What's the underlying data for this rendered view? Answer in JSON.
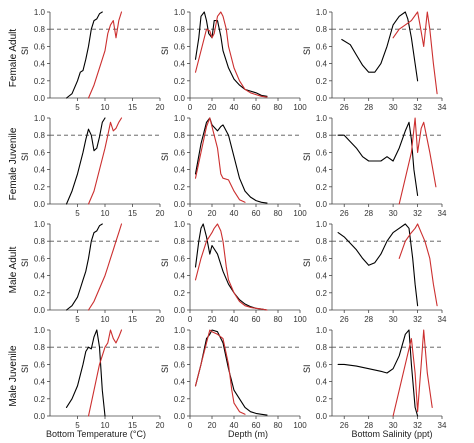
{
  "figure": {
    "row_labels": [
      "Female Adult",
      "Female Juvenile",
      "Male Adult",
      "Male Juvenile"
    ],
    "y_label": "SI",
    "x_labels": [
      "Bottom Temperature (°C)",
      "Depth (m)",
      "Bottom Salinity (ppt)"
    ]
  },
  "colors": {
    "black_series": "#000000",
    "red_series": "#cc2f2f",
    "reference_line": "#555555",
    "axes": "#444444"
  },
  "chart_data": [
    {
      "type": "line",
      "row": "Female Adult",
      "column": "Bottom Temperature",
      "xlim": [
        0,
        20
      ],
      "ylim": [
        0,
        1
      ],
      "xticks": [
        5,
        10,
        15,
        20
      ],
      "yticks": [
        0.0,
        0.2,
        0.4,
        0.6,
        0.8,
        1.0
      ],
      "reference_line": 0.8,
      "grid": false,
      "series": [
        {
          "color": "black",
          "x": [
            3,
            4,
            5,
            5.5,
            6,
            6.5,
            7,
            7.5,
            8,
            8.5,
            9,
            9.5
          ],
          "y": [
            0.0,
            0.05,
            0.2,
            0.3,
            0.32,
            0.45,
            0.6,
            0.8,
            0.9,
            0.92,
            0.98,
            1.0
          ]
        },
        {
          "color": "red",
          "x": [
            7,
            8,
            9,
            10,
            10.5,
            11,
            11.5,
            12,
            12.5,
            13
          ],
          "y": [
            0.0,
            0.15,
            0.35,
            0.55,
            0.75,
            0.85,
            0.9,
            0.7,
            0.9,
            1.0
          ]
        }
      ]
    },
    {
      "type": "line",
      "row": "Female Adult",
      "column": "Depth",
      "xlim": [
        0,
        100
      ],
      "ylim": [
        0,
        1
      ],
      "xticks": [
        0,
        20,
        40,
        60,
        80,
        100
      ],
      "yticks": [
        0.0,
        0.2,
        0.4,
        0.6,
        0.8,
        1.0
      ],
      "reference_line": 0.8,
      "grid": false,
      "series": [
        {
          "color": "black",
          "x": [
            5,
            8,
            10,
            13,
            15,
            17,
            20,
            22,
            25,
            28,
            30,
            35,
            40,
            45,
            50,
            55,
            60,
            65,
            70
          ],
          "y": [
            0.45,
            0.7,
            0.95,
            1.0,
            0.9,
            0.75,
            0.7,
            0.9,
            0.9,
            0.72,
            0.55,
            0.35,
            0.22,
            0.15,
            0.1,
            0.08,
            0.06,
            0.03,
            0.02
          ]
        },
        {
          "color": "red",
          "x": [
            5,
            10,
            15,
            18,
            20,
            22,
            25,
            28,
            30,
            33,
            35,
            40,
            45,
            50,
            55,
            60,
            65,
            70
          ],
          "y": [
            0.3,
            0.55,
            0.8,
            0.78,
            0.7,
            0.75,
            0.95,
            1.0,
            0.95,
            0.8,
            0.6,
            0.35,
            0.2,
            0.1,
            0.06,
            0.04,
            0.02,
            0.01
          ]
        }
      ]
    },
    {
      "type": "line",
      "row": "Female Adult",
      "column": "Bottom Salinity",
      "xlim": [
        25,
        34
      ],
      "ylim": [
        0,
        1
      ],
      "xticks": [
        26,
        28,
        30,
        32,
        34
      ],
      "yticks": [
        0.0,
        0.2,
        0.4,
        0.6,
        0.8,
        1.0
      ],
      "reference_line": 0.8,
      "grid": false,
      "series": [
        {
          "color": "black",
          "x": [
            25.8,
            26.5,
            27,
            27.5,
            28,
            28.5,
            29,
            29.5,
            30,
            30.5,
            31,
            31.2,
            31.5,
            31.8,
            32
          ],
          "y": [
            0.68,
            0.62,
            0.5,
            0.38,
            0.3,
            0.3,
            0.4,
            0.6,
            0.85,
            0.95,
            1.0,
            0.92,
            0.7,
            0.4,
            0.2
          ]
        },
        {
          "color": "red",
          "x": [
            30,
            30.5,
            31,
            31.5,
            32,
            32.2,
            32.5,
            32.8,
            33,
            33.3,
            33.6
          ],
          "y": [
            0.7,
            0.8,
            0.85,
            0.9,
            1.0,
            0.85,
            0.6,
            1.0,
            0.8,
            0.4,
            0.05
          ]
        }
      ]
    },
    {
      "type": "line",
      "row": "Female Juvenile",
      "column": "Bottom Temperature",
      "xlim": [
        0,
        20
      ],
      "ylim": [
        0,
        1
      ],
      "xticks": [
        5,
        10,
        15,
        20
      ],
      "yticks": [
        0.0,
        0.2,
        0.4,
        0.6,
        0.8,
        1.0
      ],
      "reference_line": 0.8,
      "grid": false,
      "series": [
        {
          "color": "black",
          "x": [
            3,
            4,
            5,
            6,
            6.5,
            7,
            7.5,
            8,
            8.5,
            9,
            9.5,
            10
          ],
          "y": [
            0.0,
            0.15,
            0.35,
            0.6,
            0.75,
            0.87,
            0.8,
            0.62,
            0.65,
            0.78,
            0.95,
            1.0
          ]
        },
        {
          "color": "red",
          "x": [
            7,
            8,
            9,
            10,
            10.5,
            11,
            11.5,
            12,
            12.5,
            13
          ],
          "y": [
            0.0,
            0.15,
            0.4,
            0.65,
            0.8,
            0.95,
            0.85,
            0.88,
            0.95,
            1.0
          ]
        }
      ]
    },
    {
      "type": "line",
      "row": "Female Juvenile",
      "column": "Depth",
      "xlim": [
        0,
        100
      ],
      "ylim": [
        0,
        1
      ],
      "xticks": [
        0,
        20,
        40,
        60,
        80,
        100
      ],
      "yticks": [
        0.0,
        0.2,
        0.4,
        0.6,
        0.8,
        1.0
      ],
      "reference_line": 0.8,
      "grid": false,
      "series": [
        {
          "color": "black",
          "x": [
            5,
            10,
            15,
            18,
            20,
            25,
            28,
            30,
            35,
            40,
            45,
            50,
            55,
            60,
            65,
            70
          ],
          "y": [
            0.35,
            0.7,
            0.95,
            1.0,
            0.92,
            0.85,
            0.9,
            0.92,
            0.8,
            0.55,
            0.3,
            0.15,
            0.08,
            0.04,
            0.02,
            0.01
          ]
        },
        {
          "color": "red",
          "x": [
            5,
            10,
            15,
            18,
            20,
            25,
            28,
            30,
            35,
            40,
            45,
            50
          ],
          "y": [
            0.3,
            0.6,
            0.9,
            1.0,
            0.9,
            0.65,
            0.35,
            0.3,
            0.28,
            0.15,
            0.05,
            0.02
          ]
        }
      ]
    },
    {
      "type": "line",
      "row": "Female Juvenile",
      "column": "Bottom Salinity",
      "xlim": [
        25,
        34
      ],
      "ylim": [
        0,
        1
      ],
      "xticks": [
        26,
        28,
        30,
        32,
        34
      ],
      "yticks": [
        0.0,
        0.2,
        0.4,
        0.6,
        0.8,
        1.0
      ],
      "reference_line": 0.8,
      "grid": false,
      "series": [
        {
          "color": "black",
          "x": [
            25.5,
            26,
            27,
            27.5,
            28,
            29,
            29.5,
            30,
            30.5,
            31,
            31.3,
            31.5,
            31.7,
            32
          ],
          "y": [
            0.8,
            0.8,
            0.65,
            0.55,
            0.5,
            0.5,
            0.55,
            0.5,
            0.65,
            0.85,
            0.95,
            0.75,
            0.4,
            0.1
          ]
        },
        {
          "color": "red",
          "x": [
            30.5,
            31,
            31.5,
            31.8,
            32,
            32.3,
            32.5,
            33,
            33.5
          ],
          "y": [
            0.0,
            0.3,
            0.6,
            1.0,
            0.6,
            0.88,
            0.95,
            0.6,
            0.2
          ]
        }
      ]
    },
    {
      "type": "line",
      "row": "Male Adult",
      "column": "Bottom Temperature",
      "xlim": [
        0,
        20
      ],
      "ylim": [
        0,
        1
      ],
      "xticks": [
        5,
        10,
        15,
        20
      ],
      "yticks": [
        0.0,
        0.2,
        0.4,
        0.6,
        0.8,
        1.0
      ],
      "reference_line": 0.8,
      "grid": false,
      "series": [
        {
          "color": "black",
          "x": [
            3,
            4,
            5,
            5.5,
            6,
            6.5,
            7,
            7.5,
            8,
            8.5,
            9,
            9.5
          ],
          "y": [
            0.0,
            0.05,
            0.15,
            0.25,
            0.35,
            0.45,
            0.6,
            0.8,
            0.9,
            0.92,
            0.98,
            1.0
          ]
        },
        {
          "color": "red",
          "x": [
            7,
            8,
            9,
            10,
            10.5,
            11,
            11.5,
            12,
            12.5,
            13
          ],
          "y": [
            0.0,
            0.1,
            0.25,
            0.4,
            0.5,
            0.6,
            0.7,
            0.8,
            0.9,
            1.0
          ]
        }
      ]
    },
    {
      "type": "line",
      "row": "Male Adult",
      "column": "Depth",
      "xlim": [
        0,
        100
      ],
      "ylim": [
        0,
        1
      ],
      "xticks": [
        0,
        20,
        40,
        60,
        80,
        100
      ],
      "yticks": [
        0.0,
        0.2,
        0.4,
        0.6,
        0.8,
        1.0
      ],
      "reference_line": 0.8,
      "grid": false,
      "series": [
        {
          "color": "black",
          "x": [
            5,
            8,
            10,
            12,
            15,
            18,
            20,
            25,
            30,
            35,
            40,
            45,
            50,
            55,
            60,
            65,
            70
          ],
          "y": [
            0.5,
            0.8,
            0.95,
            1.0,
            0.85,
            0.65,
            0.75,
            0.65,
            0.45,
            0.3,
            0.2,
            0.12,
            0.07,
            0.04,
            0.02,
            0.01,
            0.0
          ]
        },
        {
          "color": "red",
          "x": [
            5,
            10,
            15,
            20,
            22,
            25,
            28,
            30,
            33,
            35,
            40,
            45,
            50,
            55,
            60,
            65,
            70
          ],
          "y": [
            0.35,
            0.6,
            0.8,
            0.9,
            0.95,
            1.0,
            0.92,
            0.8,
            0.5,
            0.35,
            0.2,
            0.1,
            0.05,
            0.03,
            0.02,
            0.01,
            0.0
          ]
        }
      ]
    },
    {
      "type": "line",
      "row": "Male Adult",
      "column": "Bottom Salinity",
      "xlim": [
        25,
        34
      ],
      "ylim": [
        0,
        1
      ],
      "xticks": [
        26,
        28,
        30,
        32,
        34
      ],
      "yticks": [
        0.0,
        0.2,
        0.4,
        0.6,
        0.8,
        1.0
      ],
      "reference_line": 0.8,
      "grid": false,
      "series": [
        {
          "color": "black",
          "x": [
            25.5,
            26,
            27,
            27.5,
            28,
            28.5,
            29,
            29.5,
            30,
            30.5,
            31,
            31.3,
            31.6,
            31.8,
            32
          ],
          "y": [
            0.9,
            0.85,
            0.7,
            0.6,
            0.52,
            0.55,
            0.65,
            0.8,
            0.9,
            0.95,
            1.0,
            0.95,
            0.6,
            0.3,
            0.05
          ]
        },
        {
          "color": "red",
          "x": [
            30.5,
            31,
            31.5,
            31.8,
            32,
            32.3,
            32.6,
            33,
            33.3,
            33.6
          ],
          "y": [
            0.6,
            0.8,
            0.9,
            0.95,
            1.0,
            0.9,
            0.8,
            0.6,
            0.3,
            0.05
          ]
        }
      ]
    },
    {
      "type": "line",
      "row": "Male Juvenile",
      "column": "Bottom Temperature",
      "xlim": [
        0,
        20
      ],
      "ylim": [
        0,
        1
      ],
      "xticks": [
        5,
        10,
        15,
        20
      ],
      "yticks": [
        0.0,
        0.2,
        0.4,
        0.6,
        0.8,
        1.0
      ],
      "reference_line": 0.8,
      "grid": false,
      "series": [
        {
          "color": "black",
          "x": [
            3,
            4,
            5,
            6,
            6.5,
            7,
            7.5,
            8,
            8.5,
            9,
            9.5,
            10
          ],
          "y": [
            0.1,
            0.2,
            0.35,
            0.6,
            0.75,
            0.8,
            0.78,
            0.92,
            1.0,
            0.8,
            0.3,
            0.0
          ]
        },
        {
          "color": "red",
          "x": [
            7,
            8,
            9,
            10,
            10.5,
            11,
            11.5,
            12,
            12.5,
            13
          ],
          "y": [
            0.0,
            0.3,
            0.6,
            0.8,
            0.85,
            1.0,
            0.9,
            0.85,
            0.92,
            1.0
          ]
        }
      ]
    },
    {
      "type": "line",
      "row": "Male Juvenile",
      "column": "Depth",
      "xlim": [
        0,
        100
      ],
      "ylim": [
        0,
        1
      ],
      "xticks": [
        0,
        20,
        40,
        60,
        80,
        100
      ],
      "yticks": [
        0.0,
        0.2,
        0.4,
        0.6,
        0.8,
        1.0
      ],
      "reference_line": 0.8,
      "grid": false,
      "series": [
        {
          "color": "black",
          "x": [
            5,
            10,
            15,
            18,
            20,
            25,
            30,
            35,
            40,
            45,
            50,
            55,
            60,
            65,
            70
          ],
          "y": [
            0.35,
            0.6,
            0.9,
            0.95,
            1.0,
            0.98,
            0.85,
            0.55,
            0.3,
            0.2,
            0.1,
            0.05,
            0.03,
            0.02,
            0.01
          ]
        },
        {
          "color": "red",
          "x": [
            5,
            10,
            15,
            18,
            20,
            25,
            30,
            35,
            38,
            40,
            45,
            50
          ],
          "y": [
            0.35,
            0.6,
            0.85,
            1.0,
            0.98,
            0.95,
            0.9,
            0.6,
            0.3,
            0.15,
            0.05,
            0.02
          ]
        }
      ]
    },
    {
      "type": "line",
      "row": "Male Juvenile",
      "column": "Bottom Salinity",
      "xlim": [
        25,
        34
      ],
      "ylim": [
        0,
        1
      ],
      "xticks": [
        26,
        28,
        30,
        32,
        34
      ],
      "yticks": [
        0.0,
        0.2,
        0.4,
        0.6,
        0.8,
        1.0
      ],
      "reference_line": 0.8,
      "grid": false,
      "series": [
        {
          "color": "black",
          "x": [
            25.5,
            26,
            27,
            28,
            29,
            29.5,
            30,
            30.5,
            31,
            31.3,
            31.5,
            31.8,
            32
          ],
          "y": [
            0.6,
            0.6,
            0.58,
            0.55,
            0.52,
            0.5,
            0.55,
            0.7,
            0.95,
            1.0,
            0.6,
            0.1,
            0.0
          ]
        },
        {
          "color": "red",
          "x": [
            30,
            30.5,
            31,
            31.5,
            31.8,
            32,
            32.3,
            32.5,
            32.8,
            33.2
          ],
          "y": [
            0.0,
            0.3,
            0.6,
            0.9,
            0.5,
            0.05,
            0.6,
            1.0,
            0.5,
            0.1
          ]
        }
      ]
    }
  ]
}
